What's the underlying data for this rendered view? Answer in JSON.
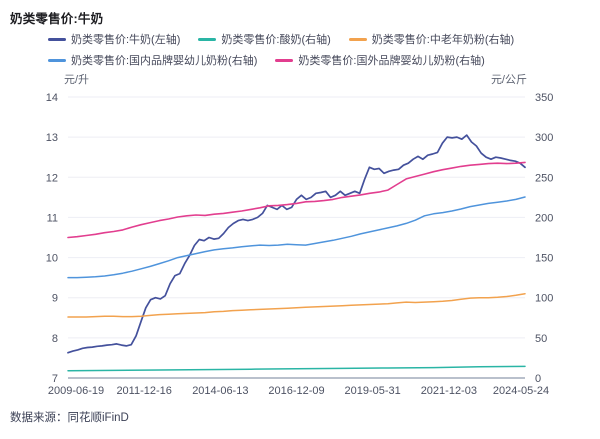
{
  "title": "奶类零售价:牛奶",
  "footer": {
    "source_label": "数据来源：同花顺iFinD"
  },
  "colors": {
    "grid": "#edeef4",
    "axis_line": "#b9c0cc",
    "tick_text": "#4d5263",
    "unit_text": "#5d6372",
    "legend_text": "#45485a",
    "title_text": "#1e1e22",
    "footer_text": "#3c4156",
    "background": "#ffffff"
  },
  "chart_data": {
    "type": "line",
    "title": "奶类零售价:牛奶",
    "grid": true,
    "legend_position": "top",
    "left_axis": {
      "unit": "元/升",
      "min": 7,
      "max": 14,
      "ticks": [
        7,
        8,
        9,
        10,
        11,
        12,
        13,
        14
      ]
    },
    "right_axis": {
      "unit": "元/公斤",
      "min": 0,
      "max": 350,
      "ticks": [
        0,
        50,
        100,
        150,
        200,
        250,
        300,
        350
      ]
    },
    "x_ticks": [
      "2009-06-19",
      "2011-12-16",
      "2014-06-13",
      "2016-12-09",
      "2019-05-31",
      "2021-12-03",
      "2024-05-24"
    ],
    "series": [
      {
        "name": "奶类零售价:牛奶(左轴)",
        "axis": "left",
        "color": "#44519c",
        "width": 1.7,
        "values": [
          7.63,
          7.67,
          7.7,
          7.74,
          7.76,
          7.77,
          7.79,
          7.8,
          7.82,
          7.83,
          7.85,
          7.82,
          7.8,
          7.83,
          8.05,
          8.4,
          8.75,
          8.95,
          9.0,
          8.97,
          9.05,
          9.35,
          9.55,
          9.6,
          9.85,
          10.05,
          10.3,
          10.45,
          10.42,
          10.5,
          10.46,
          10.48,
          10.6,
          10.75,
          10.85,
          10.92,
          10.95,
          10.92,
          10.95,
          11.0,
          11.1,
          11.3,
          11.25,
          11.2,
          11.3,
          11.2,
          11.25,
          11.45,
          11.55,
          11.45,
          11.5,
          11.6,
          11.62,
          11.65,
          11.5,
          11.55,
          11.65,
          11.55,
          11.6,
          11.65,
          11.6,
          11.95,
          12.25,
          12.2,
          12.22,
          12.1,
          12.15,
          12.18,
          12.2,
          12.3,
          12.35,
          12.45,
          12.52,
          12.45,
          12.55,
          12.58,
          12.62,
          12.85,
          13.0,
          12.98,
          13.0,
          12.95,
          13.05,
          12.88,
          12.78,
          12.6,
          12.5,
          12.45,
          12.5,
          12.48,
          12.45,
          12.42,
          12.4,
          12.35,
          12.25
        ]
      },
      {
        "name": "奶类零售价:酸奶(右轴)",
        "axis": "right",
        "color": "#2ab5a5",
        "width": 1.5,
        "values": [
          9,
          9.5,
          10,
          10.5,
          11,
          11.5,
          12,
          12.5,
          13,
          14,
          14.5
        ]
      },
      {
        "name": "奶类零售价:中老年奶粉(右轴)",
        "axis": "right",
        "color": "#f2a24e",
        "width": 1.5,
        "values": [
          76,
          76,
          76,
          76.5,
          77,
          77,
          76.5,
          76.5,
          77,
          78,
          79,
          79.5,
          80,
          80.5,
          81,
          81.5,
          82.5,
          83,
          84,
          84.5,
          85,
          85.5,
          86,
          86.5,
          87,
          87.5,
          88,
          88.5,
          89,
          89.5,
          90,
          90.5,
          91,
          91.5,
          92,
          92.5,
          93.5,
          94.5,
          94,
          94.5,
          95,
          95.5,
          96.5,
          98,
          99.5,
          100,
          100,
          100.5,
          101.5,
          103,
          105
        ]
      },
      {
        "name": "奶类零售价:国内品牌婴幼儿奶粉(右轴)",
        "axis": "right",
        "color": "#4f94dc",
        "width": 1.5,
        "values": [
          125,
          125,
          125.5,
          126,
          127,
          128.5,
          130.5,
          133,
          136,
          139,
          142.5,
          146,
          150,
          152.5,
          155,
          157.5,
          159.5,
          161,
          162,
          163.5,
          164.5,
          165.5,
          165,
          165.5,
          166.5,
          166,
          165.5,
          167.5,
          169.5,
          171.5,
          174,
          176.5,
          179.5,
          182,
          184.5,
          187,
          189.5,
          192.5,
          196.5,
          202,
          204.5,
          206,
          208,
          210.5,
          213.5,
          215.5,
          217.5,
          219,
          220.5,
          222.5,
          225.5
        ]
      },
      {
        "name": "奶类零售价:国外品牌婴幼儿奶粉(右轴)",
        "axis": "right",
        "color": "#e23e8f",
        "width": 1.6,
        "values": [
          175,
          176,
          177.5,
          179,
          181,
          182.5,
          184.5,
          188,
          191,
          193.5,
          196,
          198,
          200.5,
          202,
          203,
          202.5,
          204,
          205,
          206.5,
          208,
          210,
          212,
          214.5,
          215,
          216,
          217.5,
          219.5,
          220,
          221,
          222.5,
          225,
          226.5,
          228,
          230,
          231.5,
          234,
          241,
          248,
          251,
          254,
          257,
          259.5,
          261.5,
          263.5,
          265,
          266,
          267,
          267.5,
          267,
          267.5,
          268.5
        ]
      }
    ]
  }
}
